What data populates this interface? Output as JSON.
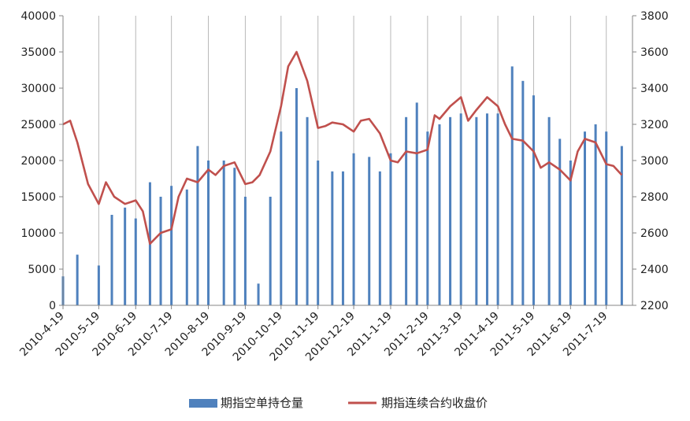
{
  "chart_data": {
    "type": "bar+line",
    "title": "",
    "grid": "vertical",
    "legend_position": "bottom",
    "y_left": {
      "min": 0,
      "max": 40000,
      "ticks": [
        "0",
        "5000",
        "10000",
        "15000",
        "20000",
        "25000",
        "30000",
        "35000",
        "40000"
      ]
    },
    "y_right": {
      "min": 2200,
      "max": 3800,
      "ticks": [
        "2200",
        "2400",
        "2600",
        "2800",
        "3000",
        "3200",
        "3400",
        "3600",
        "3800"
      ]
    },
    "x_tick_labels": [
      "2010-4-19",
      "2010-5-19",
      "2010-6-19",
      "2010-7-19",
      "2010-8-19",
      "2010-9-19",
      "2010-10-19",
      "2010-11-19",
      "2010-12-19",
      "2011-1-19",
      "2011-2-19",
      "2011-3-19",
      "2011-4-19",
      "2011-5-19",
      "2011-6-19",
      "2011-7-19"
    ],
    "colors": {
      "bars": "#4f81bd",
      "line": "#c0504d",
      "grid": "#b8b8b8",
      "axis": "#868686"
    },
    "series": [
      {
        "name": "期指空单持仓量",
        "kind": "bar",
        "axis": "left",
        "x": [
          "2010-4-19",
          "2010-5-1",
          "2010-5-19",
          "2010-5-30",
          "2010-6-10",
          "2010-6-19",
          "2010-7-1",
          "2010-7-10",
          "2010-7-19",
          "2010-8-1",
          "2010-8-10",
          "2010-8-19",
          "2010-9-1",
          "2010-9-10",
          "2010-9-19",
          "2010-9-30",
          "2010-10-10",
          "2010-10-19",
          "2010-11-1",
          "2010-11-10",
          "2010-11-19",
          "2010-12-1",
          "2010-12-10",
          "2010-12-19",
          "2011-1-1",
          "2011-1-10",
          "2011-1-19",
          "2011-2-1",
          "2011-2-10",
          "2011-2-19",
          "2011-3-1",
          "2011-3-10",
          "2011-3-19",
          "2011-4-1",
          "2011-4-10",
          "2011-4-19",
          "2011-5-1",
          "2011-5-10",
          "2011-5-19",
          "2011-6-1",
          "2011-6-10",
          "2011-6-19",
          "2011-7-1",
          "2011-7-10",
          "2011-7-19",
          "2011-8-1"
        ],
        "values": [
          4000,
          7000,
          5500,
          12500,
          13500,
          12000,
          17000,
          15000,
          16500,
          16000,
          22000,
          20000,
          20000,
          19000,
          15000,
          3000,
          15000,
          24000,
          30000,
          26000,
          20000,
          18500,
          18500,
          21000,
          20500,
          18500,
          21000,
          26000,
          28000,
          24000,
          25000,
          26000,
          26500,
          26000,
          26500,
          26500,
          33000,
          31000,
          29000,
          26000,
          23000,
          20000,
          24000,
          25000,
          24000,
          22000
        ]
      },
      {
        "name": "期指连续合约收盘价",
        "kind": "line",
        "axis": "right",
        "x": [
          "2010-4-19",
          "2010-4-25",
          "2010-5-1",
          "2010-5-10",
          "2010-5-19",
          "2010-5-25",
          "2010-6-1",
          "2010-6-10",
          "2010-6-19",
          "2010-6-25",
          "2010-7-1",
          "2010-7-10",
          "2010-7-19",
          "2010-7-25",
          "2010-8-1",
          "2010-8-10",
          "2010-8-19",
          "2010-8-25",
          "2010-9-1",
          "2010-9-10",
          "2010-9-19",
          "2010-9-25",
          "2010-10-1",
          "2010-10-10",
          "2010-10-19",
          "2010-10-25",
          "2010-11-1",
          "2010-11-10",
          "2010-11-19",
          "2010-11-25",
          "2010-12-1",
          "2010-12-10",
          "2010-12-19",
          "2010-12-25",
          "2011-1-1",
          "2011-1-10",
          "2011-1-19",
          "2011-1-25",
          "2011-2-1",
          "2011-2-10",
          "2011-2-19",
          "2011-2-25",
          "2011-3-1",
          "2011-3-10",
          "2011-3-19",
          "2011-3-25",
          "2011-4-1",
          "2011-4-10",
          "2011-4-19",
          "2011-4-25",
          "2011-5-1",
          "2011-5-10",
          "2011-5-19",
          "2011-5-25",
          "2011-6-1",
          "2011-6-10",
          "2011-6-19",
          "2011-6-25",
          "2011-7-1",
          "2011-7-10",
          "2011-7-19",
          "2011-7-25",
          "2011-8-1"
        ],
        "values": [
          3200,
          3220,
          3100,
          2870,
          2760,
          2880,
          2800,
          2760,
          2780,
          2720,
          2540,
          2600,
          2620,
          2800,
          2900,
          2880,
          2950,
          2920,
          2970,
          2990,
          2870,
          2880,
          2920,
          3050,
          3300,
          3520,
          3600,
          3440,
          3180,
          3190,
          3210,
          3200,
          3160,
          3220,
          3230,
          3150,
          3000,
          2990,
          3050,
          3040,
          3060,
          3250,
          3230,
          3300,
          3350,
          3220,
          3280,
          3350,
          3300,
          3200,
          3120,
          3110,
          3050,
          2960,
          2990,
          2950,
          2890,
          3050,
          3120,
          3100,
          2980,
          2970,
          2920
        ]
      }
    ]
  }
}
